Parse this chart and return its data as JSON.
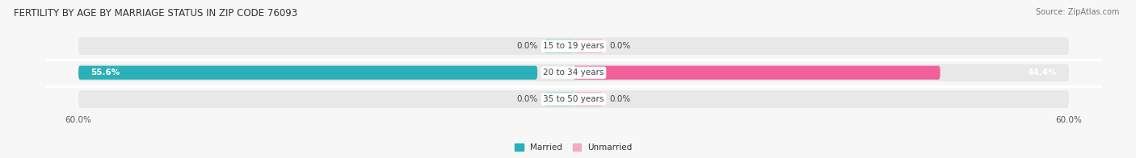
{
  "title": "FERTILITY BY AGE BY MARRIAGE STATUS IN ZIP CODE 76093",
  "source": "Source: ZipAtlas.com",
  "categories": [
    "15 to 19 years",
    "20 to 34 years",
    "35 to 50 years"
  ],
  "married": [
    0.0,
    55.6,
    0.0
  ],
  "unmarried": [
    0.0,
    44.4,
    0.0
  ],
  "married_color_full": "#2ab0b8",
  "married_color_small": "#8dd8dc",
  "unmarried_color_full": "#f0609a",
  "unmarried_color_small": "#f5a8c8",
  "bar_bg_color": "#e8e8e8",
  "xlim": 60.0,
  "bar_height": 0.52,
  "figsize": [
    14.06,
    1.96
  ],
  "dpi": 100,
  "title_fontsize": 8.5,
  "label_fontsize": 7.5,
  "category_fontsize": 7.5,
  "legend_fontsize": 7.5,
  "source_fontsize": 7,
  "background_color": "#f7f7f7",
  "white": "#ffffff",
  "text_dark": "#444444",
  "text_light": "#ffffff",
  "small_bar_width": 3.5
}
